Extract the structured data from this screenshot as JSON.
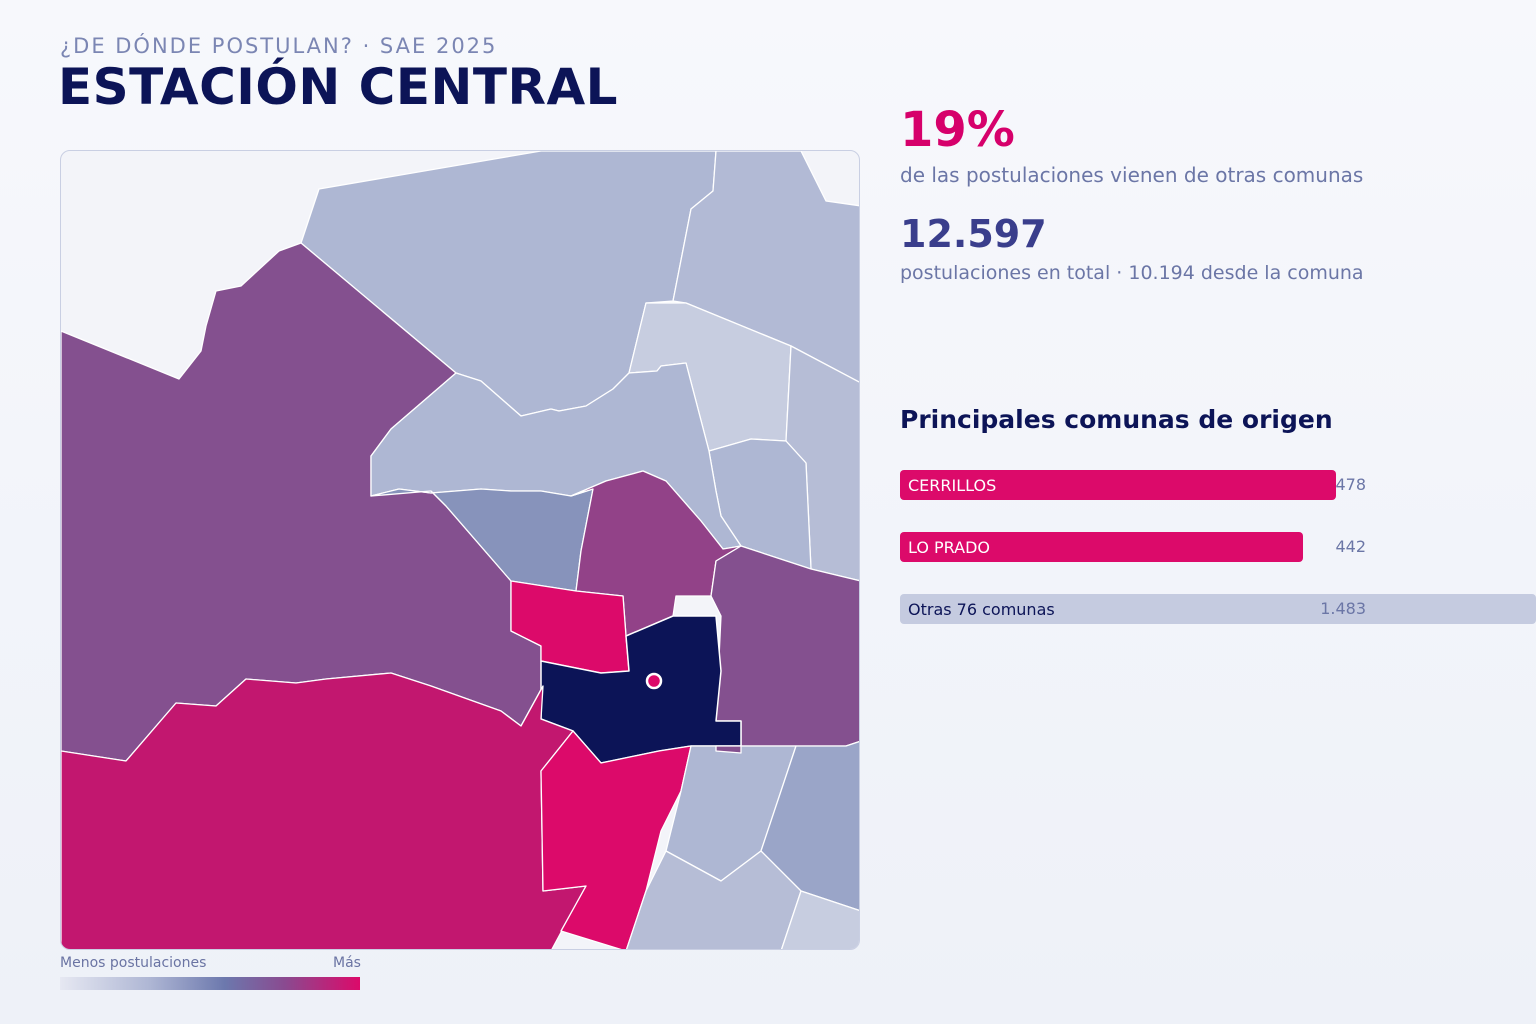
{
  "header": {
    "kicker": "¿DE DÓNDE POSTULAN? · SAE 2025",
    "title": "ESTACIÓN CENTRAL"
  },
  "stats": {
    "pct_value": "19%",
    "pct_label": "de las postulaciones vienen de otras comunas",
    "total_value": "12.597",
    "total_label": "postulaciones en total · 10.194 desde la comuna"
  },
  "ranking": {
    "title": "Principales comunas de origen",
    "max_value": 478,
    "rows": [
      {
        "label": "CERRILLOS",
        "value": "478",
        "amount": 478,
        "style": "hot"
      },
      {
        "label": "LO PRADO",
        "value": "442",
        "amount": 442,
        "style": "hot"
      },
      {
        "label": "Otras 76 comunas",
        "value": "1.483",
        "amount": 1483,
        "style": "other"
      }
    ]
  },
  "legend": {
    "min_label": "Menos postulaciones",
    "max_label": "Más"
  },
  "colors": {
    "accent": "#dc0a6a",
    "navy": "#0c1457",
    "selected": "#0c1457",
    "high": "#dc0a6a",
    "mid_high": "#c2176f",
    "mid": "#84508f",
    "mid_low": "#8793bb",
    "low": "#aeb7d3",
    "lowest": "#c7cde0"
  }
}
